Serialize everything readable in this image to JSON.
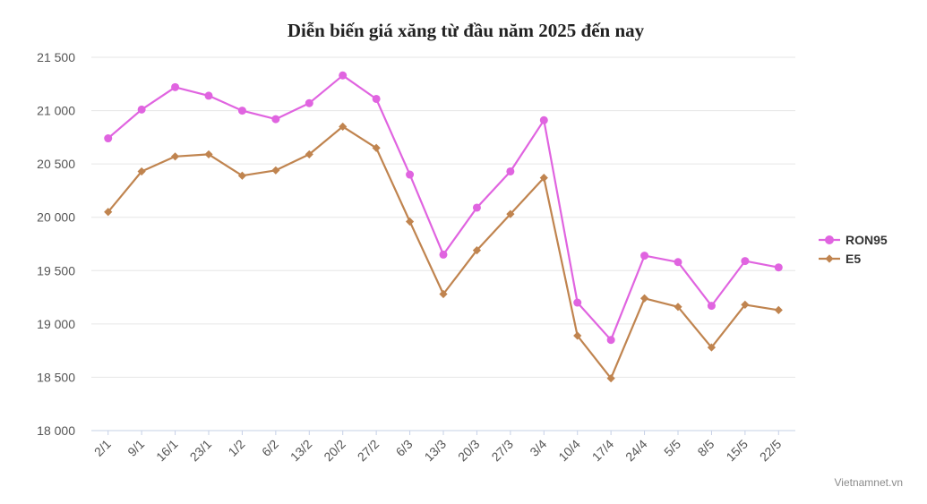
{
  "chart_data": {
    "type": "line",
    "title": "Diễn biến giá xăng từ đầu năm 2025 đến nay",
    "xlabel": "",
    "ylabel": "",
    "categories": [
      "2/1",
      "9/1",
      "16/1",
      "23/1",
      "1/2",
      "6/2",
      "13/2",
      "20/2",
      "27/2",
      "6/3",
      "13/3",
      "20/3",
      "27/3",
      "3/4",
      "10/4",
      "17/4",
      "24/4",
      "5/5",
      "8/5",
      "15/5",
      "22/5"
    ],
    "series": [
      {
        "name": "RON95",
        "color": "#e064e0",
        "marker": "circle",
        "values": [
          20740,
          21010,
          21220,
          21140,
          21000,
          20920,
          21070,
          21330,
          21110,
          20400,
          19650,
          20090,
          20430,
          20910,
          19200,
          18850,
          19640,
          19580,
          19170,
          19590,
          19530
        ]
      },
      {
        "name": "E5",
        "color": "#c0844f",
        "marker": "diamond",
        "values": [
          20050,
          20430,
          20570,
          20590,
          20390,
          20440,
          20590,
          20850,
          20650,
          19960,
          19280,
          19690,
          20030,
          20370,
          18890,
          18490,
          19240,
          19160,
          18780,
          19180,
          19130
        ]
      }
    ],
    "ylim": [
      18000,
      21500
    ],
    "yticks": [
      "18 000",
      "18 500",
      "19 000",
      "19 500",
      "20 000",
      "20 500",
      "21 000",
      "21 500"
    ],
    "grid": true,
    "legend_position": "right"
  },
  "credit": "Vietnamnet.vn"
}
